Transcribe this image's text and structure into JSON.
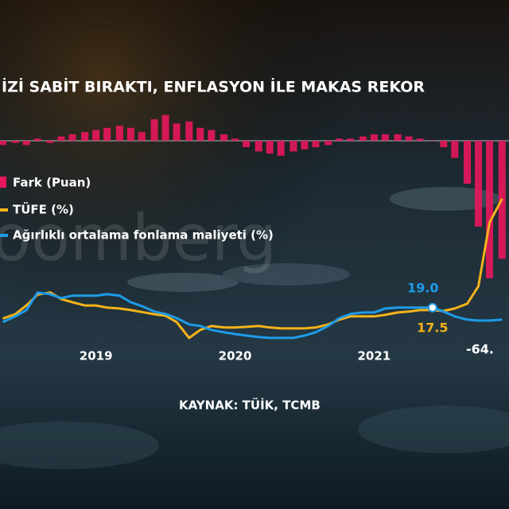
{
  "chart_data": {
    "type": "bar",
    "title": "İZİ SABİT BIRAKTI, ENFLASYON İLE MAKAS REKOR",
    "source": "KAYNAK: TÜİK, TCMB",
    "watermark": "oomberg",
    "x": [
      2018.33,
      2018.42,
      2018.5,
      2018.58,
      2018.67,
      2018.75,
      2018.83,
      2018.92,
      2019.0,
      2019.08,
      2019.17,
      2019.25,
      2019.33,
      2019.42,
      2019.5,
      2019.58,
      2019.67,
      2019.75,
      2019.83,
      2019.92,
      2020.0,
      2020.08,
      2020.17,
      2020.25,
      2020.33,
      2020.42,
      2020.5,
      2020.58,
      2020.67,
      2020.75,
      2020.83,
      2020.92,
      2021.0,
      2021.08,
      2021.17,
      2021.25,
      2021.33,
      2021.42,
      2021.5,
      2021.58,
      2021.67,
      2021.75,
      2021.83,
      2021.92
    ],
    "xlim": [
      2018.31,
      2021.97
    ],
    "xticks": [
      2019,
      2020,
      2021
    ],
    "ylim": [
      -7.7,
      123.7
    ],
    "y2lim": [
      -104.8,
      28.5
    ],
    "series": [
      {
        "name": "Fark (Puan)",
        "type": "bar",
        "axis": "y2",
        "color": "#e8175d",
        "values": [
          -2,
          -1,
          -2,
          1,
          -1,
          2,
          3,
          4,
          5,
          6,
          7,
          6,
          4,
          10,
          12,
          8,
          9,
          6,
          5,
          3,
          1,
          -3,
          -5,
          -6,
          -7,
          -5,
          -4,
          -3,
          -2,
          1,
          1,
          2,
          3,
          3,
          3,
          2,
          1,
          0,
          -3,
          -8,
          -20,
          -40,
          -64,
          -55
        ],
        "value_labels": [
          null,
          null,
          null,
          null,
          null,
          null,
          null,
          null,
          null,
          null,
          null,
          null,
          null,
          null,
          null,
          null,
          null,
          null,
          null,
          null,
          null,
          null,
          null,
          null,
          null,
          null,
          null,
          null,
          null,
          null,
          null,
          null,
          null,
          null,
          null,
          null,
          null,
          null,
          null,
          null,
          null,
          null,
          "-64.",
          null
        ]
      },
      {
        "name": "TÜFE (%)",
        "type": "line",
        "color": "#f5b31a",
        "values": [
          14,
          16,
          20,
          25,
          26,
          23,
          21.5,
          20,
          20,
          19,
          18.6,
          17.9,
          17,
          16,
          15.3,
          12.4,
          5.1,
          8.8,
          10.6,
          9.9,
          9.9,
          10.2,
          10.6,
          9.9,
          9.5,
          9.5,
          9.5,
          9.9,
          11.3,
          13.5,
          15,
          15,
          15,
          15.7,
          16.8,
          17.2,
          17.9,
          17.9,
          17.5,
          18.6,
          20.8,
          28.8,
          58,
          69
        ],
        "value_labels": [
          null,
          null,
          null,
          null,
          null,
          null,
          null,
          null,
          null,
          null,
          null,
          null,
          null,
          null,
          null,
          null,
          null,
          null,
          null,
          null,
          null,
          null,
          null,
          null,
          null,
          null,
          null,
          null,
          null,
          null,
          null,
          null,
          null,
          null,
          null,
          null,
          null,
          null,
          "17.5",
          null,
          null,
          null,
          null,
          null
        ]
      },
      {
        "name": "Ağırlıklı ortalama fonlama maliyeti (%)",
        "type": "line",
        "color": "#1e9be8",
        "values": [
          12.4,
          15,
          17.9,
          25.9,
          25.2,
          23.4,
          24.5,
          24.5,
          24.5,
          25.2,
          24.5,
          21.5,
          19.7,
          17.2,
          16.1,
          14.2,
          11.3,
          10.6,
          8.8,
          7.7,
          6.9,
          6.2,
          5.5,
          5.1,
          5.1,
          5.1,
          6.2,
          7.7,
          10.6,
          14.2,
          16.1,
          16.8,
          16.8,
          18.6,
          19,
          19,
          19,
          19,
          17.2,
          15,
          13.5,
          13.1,
          13.1,
          13.5
        ],
        "value_labels": [
          null,
          null,
          null,
          null,
          null,
          null,
          null,
          null,
          null,
          null,
          null,
          null,
          null,
          null,
          null,
          null,
          null,
          null,
          null,
          null,
          null,
          null,
          null,
          null,
          null,
          null,
          null,
          null,
          null,
          null,
          null,
          null,
          null,
          null,
          null,
          null,
          null,
          "19.0",
          null,
          null,
          null,
          null,
          null,
          null
        ]
      }
    ]
  }
}
